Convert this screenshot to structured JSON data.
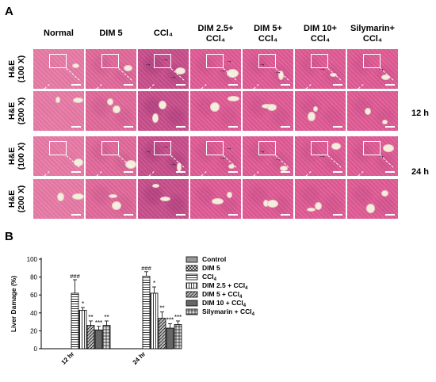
{
  "figure": {
    "panel_a_label": "A",
    "panel_b_label": "B",
    "columns": [
      {
        "line1": "Normal",
        "line2": ""
      },
      {
        "line1": "DIM 5",
        "line2": ""
      },
      {
        "line1": "CCl₄",
        "line2": ""
      },
      {
        "line1": "DIM 2.5+",
        "line2": "CCl₄"
      },
      {
        "line1": "DIM 5+",
        "line2": "CCl₄"
      },
      {
        "line1": "DIM 10+",
        "line2": "CCl₄"
      },
      {
        "line1": "Silymarin+",
        "line2": "CCl₄"
      }
    ],
    "rows": [
      {
        "line1": "H&E",
        "line2": "(100 X)"
      },
      {
        "line1": "H&E",
        "line2": "(200 X)"
      },
      {
        "line1": "H&E",
        "line2": "(100 X)"
      },
      {
        "line1": "H&E",
        "line2": "(200 X)"
      }
    ],
    "time_labels": [
      "12 h",
      "24 h"
    ],
    "tissue_colors": {
      "normal": "#e87aa6",
      "dim5": "#e2689a",
      "ccl4": "#c84d8a",
      "treated": "#e05a94",
      "lesion": "#f4a8c8",
      "stain_dark": "#8a2a6a"
    }
  },
  "chart_data": {
    "type": "bar",
    "ylabel": "Liver Damage (%)",
    "ylim": [
      0,
      100
    ],
    "yticks": [
      0,
      20,
      40,
      60,
      80,
      100
    ],
    "categories": [
      "12 hr",
      "24 hr"
    ],
    "series": [
      {
        "name": "Control",
        "values": [
          0,
          0
        ],
        "errors": [
          0,
          0
        ],
        "pattern": "solid-gray",
        "annotations": [
          "",
          ""
        ]
      },
      {
        "name": "DIM 5",
        "values": [
          0,
          0
        ],
        "errors": [
          0,
          0
        ],
        "pattern": "crosshatch",
        "annotations": [
          "",
          ""
        ]
      },
      {
        "name": "CCl4",
        "values": [
          62,
          81
        ],
        "errors": [
          15,
          5
        ],
        "pattern": "horizontal",
        "annotations": [
          "###",
          "###"
        ]
      },
      {
        "name": "DIM 2.5 + CCl4",
        "values": [
          43,
          62
        ],
        "errors": [
          3,
          7
        ],
        "pattern": "vertical",
        "annotations": [
          "*",
          "*"
        ]
      },
      {
        "name": "DIM 5 + CCl4",
        "values": [
          26,
          34
        ],
        "errors": [
          5,
          7
        ],
        "pattern": "diagonal",
        "annotations": [
          "**",
          "**"
        ]
      },
      {
        "name": "DIM 10 + CCl4",
        "values": [
          21,
          23
        ],
        "errors": [
          4,
          5
        ],
        "pattern": "solid-dark",
        "annotations": [
          "***",
          "***"
        ]
      },
      {
        "name": "Silymarin + CCl4",
        "values": [
          26,
          27
        ],
        "errors": [
          5,
          4
        ],
        "pattern": "grid",
        "annotations": [
          "**",
          "***"
        ]
      }
    ],
    "legend_position": "right",
    "legend_labels": [
      {
        "text": "Control",
        "sub": "",
        "tail": ""
      },
      {
        "text": "DIM 5",
        "sub": "",
        "tail": ""
      },
      {
        "text": "CCl",
        "sub": "4",
        "tail": ""
      },
      {
        "text": "DIM 2.5 + CCl",
        "sub": "4",
        "tail": ""
      },
      {
        "text": "DIM 5 + CCl",
        "sub": "4",
        "tail": ""
      },
      {
        "text": "DIM 10 + CCl",
        "sub": "4",
        "tail": ""
      },
      {
        "text": "Silymarin + CCl",
        "sub": "4",
        "tail": ""
      }
    ],
    "grid": false
  }
}
